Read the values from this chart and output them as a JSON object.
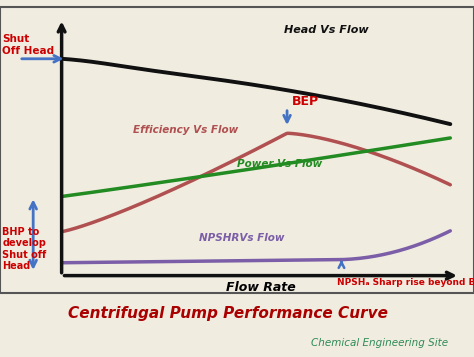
{
  "title": "Centrifugal Pump Performance Curve",
  "subtitle": "Chemical Engineering Site",
  "xlabel": "Flow Rate",
  "bg_color": "#f0ece0",
  "plot_bg": "#e8e4d8",
  "border_color": "#555555",
  "title_color": "#aa0000",
  "subtitle_color": "#2e8b57",
  "curves": {
    "head": {
      "label": "Head Vs Flow",
      "color": "#111111",
      "lw": 2.8
    },
    "efficiency": {
      "label": "Efficiency Vs Flow",
      "color": "#b05050",
      "lw": 2.5
    },
    "power": {
      "label": "Power Vs Flow",
      "color": "#228b22",
      "lw": 2.5
    },
    "npshr": {
      "label": "NPSHRVs Flow",
      "color": "#7b5ea7",
      "lw": 2.5
    }
  },
  "annotations": {
    "shut_off_head": {
      "text": "Shut\nOff Head",
      "color": "#cc0000",
      "fontsize": 7.5
    },
    "bhp": {
      "text": "BHP to\ndevelop\nShut off\nHead",
      "color": "#cc0000",
      "fontsize": 7.0
    },
    "bep": {
      "text": "BEP",
      "color": "#cc0000",
      "fontsize": 9
    },
    "npsh_sharp": {
      "text": "NPSHₐ Sharp rise beyond BEP",
      "color": "#cc0000",
      "fontsize": 6.5
    }
  },
  "arrow_color": "#4472c4",
  "axis_color": "#111111",
  "axis_lw": 2.5
}
